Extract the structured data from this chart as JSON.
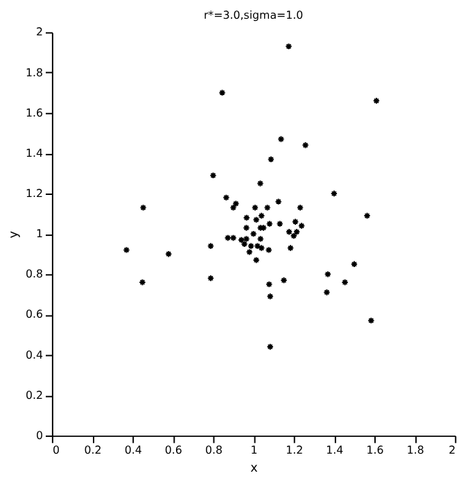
{
  "chart_data": {
    "type": "scatter",
    "title": "r*=3.0,sigma=1.0",
    "xlabel": "x",
    "ylabel": "y",
    "x": [
      1.175,
      0.845,
      1.61,
      1.137,
      1.258,
      1.087,
      0.8,
      1.034,
      1.4,
      0.453,
      0.865,
      0.913,
      0.9,
      1.008,
      1.124,
      1.232,
      1.069,
      1.04,
      1.564,
      0.966,
      1.208,
      1.014,
      1.131,
      1.08,
      1.239,
      1.177,
      1.215,
      1.2,
      1.05,
      0.873,
      0.9,
      0.94,
      0.955,
      0.37,
      0.579,
      0.788,
      0.988,
      0.98,
      1.02,
      1.04,
      1.076,
      1.184,
      1.014,
      1.5,
      1.369,
      0.449,
      0.788,
      1.151,
      1.454,
      1.078,
      1.364,
      1.083,
      1.584,
      1.083,
      0.965,
      1.0,
      1.035,
      0.965,
      1.035
    ],
    "values": [
      1.93,
      1.7,
      1.66,
      1.47,
      1.44,
      1.37,
      1.29,
      1.25,
      1.2,
      1.13,
      1.18,
      1.15,
      1.13,
      1.13,
      1.16,
      1.13,
      1.13,
      1.09,
      1.09,
      1.08,
      1.06,
      1.07,
      1.05,
      1.05,
      1.04,
      1.01,
      1.01,
      0.99,
      1.03,
      0.98,
      0.98,
      0.97,
      0.95,
      0.92,
      0.9,
      0.94,
      0.94,
      0.91,
      0.94,
      0.93,
      0.92,
      0.93,
      0.87,
      0.85,
      0.8,
      0.76,
      0.78,
      0.77,
      0.76,
      0.75,
      0.71,
      0.69,
      0.57,
      0.44,
      1.03,
      1.0,
      1.03,
      0.975,
      0.975
    ],
    "color": "#000000",
    "marker": "cross",
    "xlim": [
      0,
      2
    ],
    "ylim": [
      0,
      2
    ],
    "xticks": [
      {
        "value": 0,
        "label": "0"
      },
      0.2,
      0.4,
      0.6,
      0.8,
      {
        "value": 1,
        "label": "1"
      },
      1.2,
      1.4,
      1.6,
      1.8,
      {
        "value": 2,
        "label": "2"
      }
    ],
    "yticks": [
      {
        "value": 0,
        "label": "0"
      },
      0.2,
      0.4,
      0.6,
      0.8,
      {
        "value": 1,
        "label": "1"
      },
      1.2,
      1.4,
      1.6,
      1.8,
      {
        "value": 2,
        "label": "2"
      }
    ],
    "grid": false
  }
}
